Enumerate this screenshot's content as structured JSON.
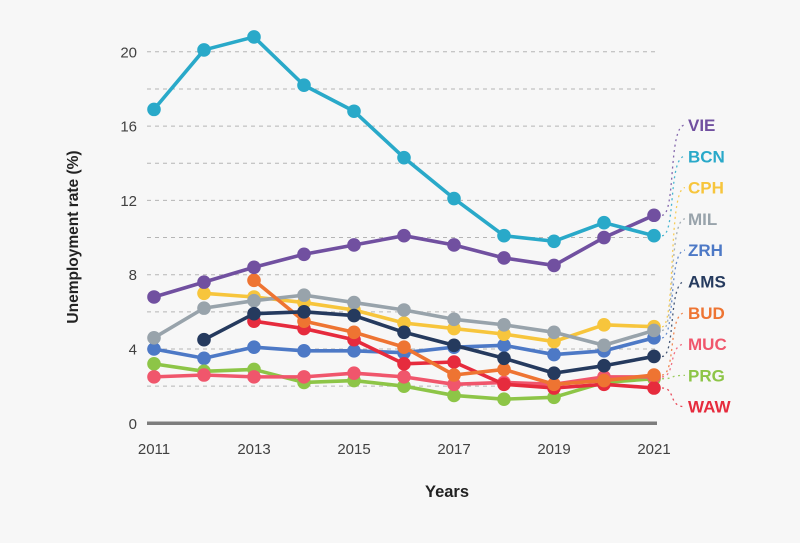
{
  "chart_data": {
    "type": "line",
    "x": [
      2011,
      2012,
      2013,
      2014,
      2015,
      2016,
      2017,
      2018,
      2019,
      2020,
      2021
    ],
    "xticks": [
      2011,
      2013,
      2015,
      2017,
      2019,
      2021
    ],
    "ytick_labels": [
      0,
      4,
      8,
      12,
      16,
      20
    ],
    "ylim": [
      0,
      22
    ],
    "gridline_step": 2,
    "grid_style": "horizontal dashed",
    "xlabel": "Years",
    "ylabel": "Unemployment rate (%)",
    "legend_position": "right",
    "series": [
      {
        "name": "VIE",
        "color": "#7150a0",
        "values": [
          6.8,
          7.6,
          8.4,
          9.1,
          9.6,
          10.1,
          9.6,
          8.9,
          8.5,
          10.0,
          11.2
        ]
      },
      {
        "name": "BCN",
        "color": "#29a9c9",
        "values": [
          16.9,
          20.1,
          20.8,
          18.2,
          16.8,
          14.3,
          12.1,
          10.1,
          9.8,
          10.8,
          10.1
        ]
      },
      {
        "name": "CPH",
        "color": "#f7c53c",
        "values": [
          null,
          7.0,
          6.8,
          6.5,
          6.1,
          5.4,
          5.1,
          4.8,
          4.4,
          5.3,
          5.2
        ]
      },
      {
        "name": "MIL",
        "color": "#98a3ab",
        "values": [
          4.6,
          6.2,
          6.6,
          6.9,
          6.5,
          6.1,
          5.6,
          5.3,
          4.9,
          4.2,
          5.0
        ]
      },
      {
        "name": "ZRH",
        "color": "#4d79c6",
        "values": [
          4.0,
          3.5,
          4.1,
          3.9,
          3.9,
          3.8,
          4.1,
          4.2,
          3.7,
          3.9,
          4.6
        ]
      },
      {
        "name": "AMS",
        "color": "#253a5e",
        "values": [
          null,
          4.5,
          5.9,
          6.0,
          5.8,
          4.9,
          4.2,
          3.5,
          2.7,
          3.1,
          3.6
        ]
      },
      {
        "name": "BUD",
        "color": "#ee7432",
        "values": [
          null,
          null,
          7.7,
          5.5,
          4.9,
          4.1,
          2.6,
          2.9,
          2.1,
          2.3,
          2.6
        ]
      },
      {
        "name": "MUC",
        "color": "#f0566c",
        "values": [
          2.5,
          2.6,
          2.5,
          2.5,
          2.7,
          2.5,
          2.1,
          2.2,
          2.1,
          2.5,
          2.5
        ]
      },
      {
        "name": "PRG",
        "color": "#8dc547",
        "values": [
          3.2,
          2.8,
          2.9,
          2.2,
          2.3,
          2.0,
          1.5,
          1.3,
          1.4,
          2.2,
          2.4
        ]
      },
      {
        "name": "WAW",
        "color": "#e62b3d",
        "values": [
          null,
          null,
          5.5,
          5.1,
          4.5,
          3.2,
          3.3,
          2.1,
          1.9,
          2.1,
          1.9
        ]
      }
    ],
    "draw_order": [
      "ZRH",
      "CPH",
      "MIL",
      "PRG",
      "MUC",
      "WAW",
      "BUD",
      "AMS",
      "VIE",
      "BCN"
    ],
    "colors": {
      "background": "#f7f7f7",
      "gridline": "#b5b5b5",
      "axis_line": "#7d7d7d",
      "tick_text": "#414141"
    }
  }
}
